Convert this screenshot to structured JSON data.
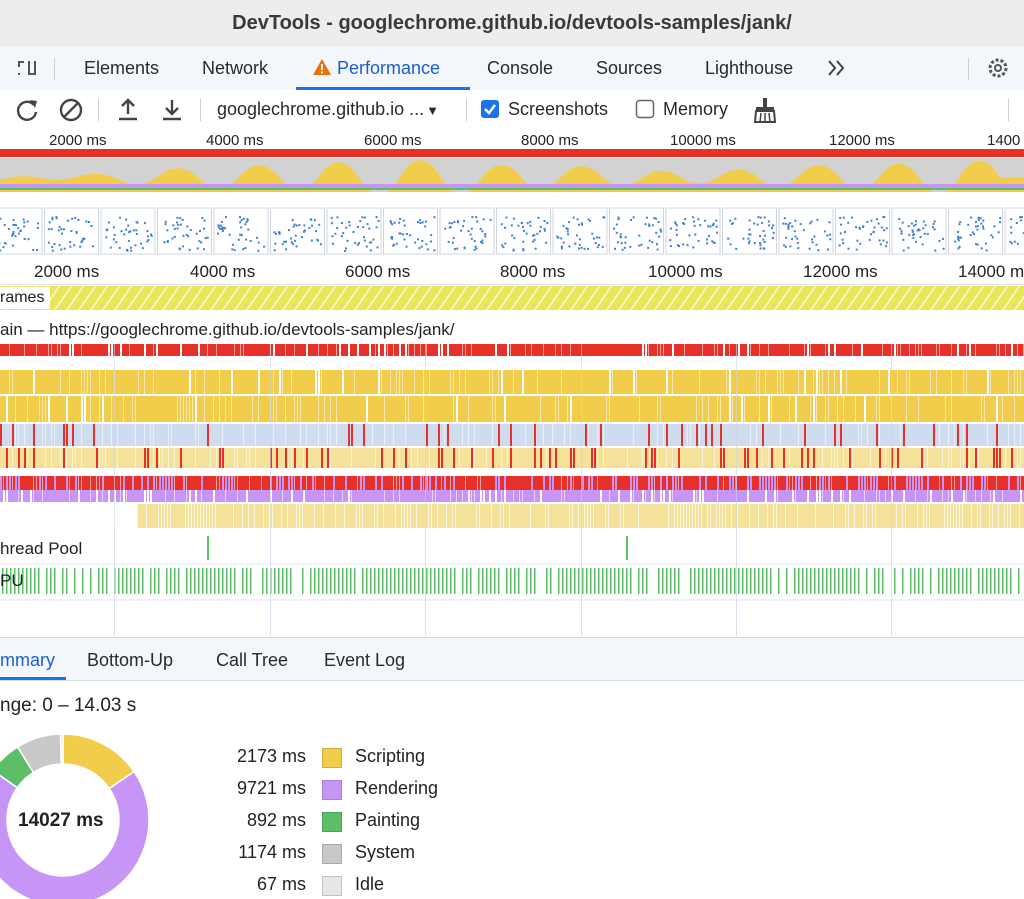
{
  "window": {
    "title": "DevTools - googlechrome.github.io/devtools-samples/jank/"
  },
  "tabs": [
    {
      "label": "Elements"
    },
    {
      "label": "Network"
    },
    {
      "label": "Performance",
      "warning": true
    },
    {
      "label": "Console"
    },
    {
      "label": "Sources"
    },
    {
      "label": "Lighthouse"
    }
  ],
  "toolbar": {
    "recording_select": "googlechrome.github.io ...",
    "screenshots_label": "Screenshots",
    "screenshots_checked": true,
    "memory_label": "Memory",
    "memory_checked": false
  },
  "overview": {
    "tick_labels": [
      "2000 ms",
      "4000 ms",
      "6000 ms",
      "8000 ms",
      "10000 ms",
      "12000 ms",
      "1400"
    ]
  },
  "timeline": {
    "tick_labels": [
      "2000 ms",
      "4000 ms",
      "6000 ms",
      "8000 ms",
      "10000 ms",
      "12000 ms",
      "14000 m"
    ],
    "frames_label": "rames",
    "main_label": "ain — https://googlechrome.github.io/devtools-samples/jank/",
    "thread_pool_label": "hread Pool",
    "gpu_label": "PU"
  },
  "colors": {
    "scripting": "#f2cd4c",
    "rendering": "#c695f5",
    "painting": "#5cbf68",
    "system": "#c8c8c8",
    "idle": "#e6e6e6",
    "accent": "#1a73e8",
    "long_task": "#e8302a",
    "frames": "#e9e65a"
  },
  "bottom_tabs": [
    {
      "label": "mmary",
      "active": true
    },
    {
      "label": "Bottom-Up"
    },
    {
      "label": "Call Tree"
    },
    {
      "label": "Event Log"
    }
  ],
  "summary": {
    "range_label": "nge: 0 – 14.03 s",
    "total_label": "14027 ms",
    "legend": [
      {
        "value": "2173 ms",
        "name": "Scripting",
        "color_key": "scripting"
      },
      {
        "value": "9721 ms",
        "name": "Rendering",
        "color_key": "rendering"
      },
      {
        "value": "892 ms",
        "name": "Painting",
        "color_key": "painting"
      },
      {
        "value": "1174 ms",
        "name": "System",
        "color_key": "system"
      },
      {
        "value": "67 ms",
        "name": "Idle",
        "color_key": "idle"
      }
    ]
  },
  "icons": {
    "inspect": "inspect-icon",
    "record": "reload-record-icon",
    "clear": "clear-icon",
    "upload": "upload-icon",
    "download": "download-icon",
    "gc": "broom-icon",
    "more_tabs": "chevron-double-right-icon",
    "settings": "gear-icon",
    "warning": "warning-icon"
  }
}
